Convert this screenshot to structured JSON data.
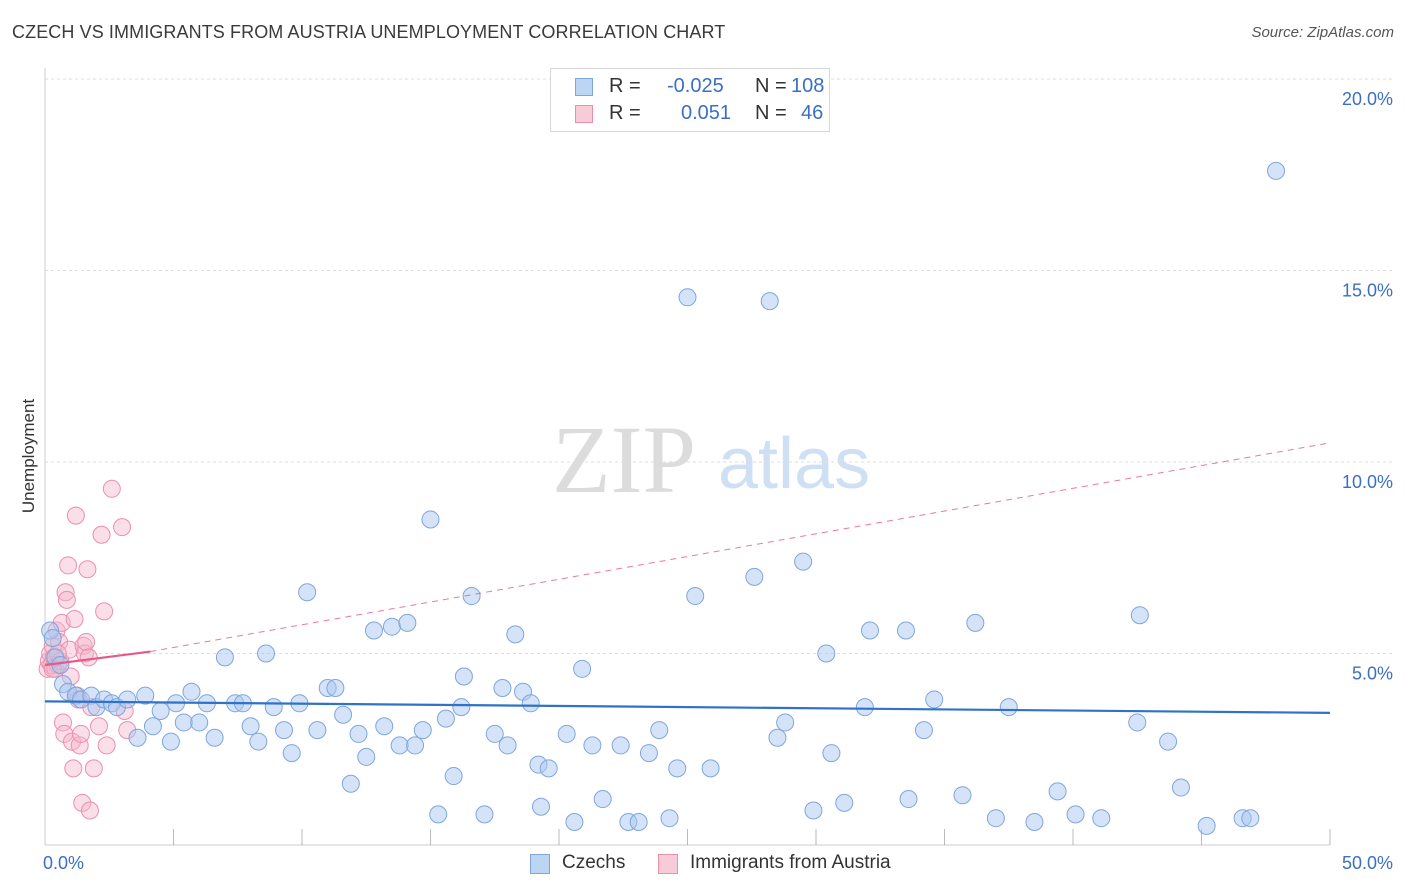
{
  "title": "CZECH VS IMMIGRANTS FROM AUSTRIA UNEMPLOYMENT CORRELATION CHART",
  "source": "Source: ZipAtlas.com",
  "watermark": {
    "zip": "ZIP",
    "atlas": "atlas"
  },
  "legend": {
    "r_label": "R =",
    "n_label": "N =",
    "rows": [
      {
        "r": "-0.025",
        "n": "108"
      },
      {
        "r": "0.051",
        "n": "46"
      }
    ]
  },
  "bottom_legend": [
    "Czechs",
    "Immigrants from Austria"
  ],
  "colors": {
    "blue_fill": "#a9c8f0",
    "blue_stroke": "#7fa6dd",
    "blue_line": "#2f72c8",
    "pink_fill": "#f5b8cb",
    "pink_stroke": "#ec8fae",
    "pink_line": "#e9588a",
    "axis_label": "#3b6fc4",
    "grid": "#dddddd"
  },
  "chart_data": {
    "type": "scatter",
    "title": "CZECH VS IMMIGRANTS FROM AUSTRIA UNEMPLOYMENT CORRELATION CHART",
    "xlabel": "",
    "ylabel": "Unemployment",
    "xlim": [
      0,
      50
    ],
    "ylim": [
      0,
      20
    ],
    "x_tick_labels": [
      "0.0%",
      "50.0%"
    ],
    "y_ticks": [
      5,
      10,
      15,
      20
    ],
    "y_tick_labels": [
      "5.0%",
      "10.0%",
      "15.0%",
      "20.0%"
    ],
    "grid": true,
    "legend_position": "top-center",
    "series": [
      {
        "name": "Czechs",
        "r": -0.025,
        "n": 108,
        "trend": {
          "x0": 0,
          "y0": 3.75,
          "x1": 50,
          "y1": 3.45
        },
        "points": [
          [
            0.2,
            5.6
          ],
          [
            0.3,
            5.4
          ],
          [
            0.4,
            4.9
          ],
          [
            0.6,
            4.7
          ],
          [
            0.7,
            4.2
          ],
          [
            0.9,
            4.0
          ],
          [
            1.2,
            3.9
          ],
          [
            1.4,
            3.8
          ],
          [
            1.8,
            3.9
          ],
          [
            2.0,
            3.6
          ],
          [
            2.3,
            3.8
          ],
          [
            2.6,
            3.7
          ],
          [
            2.8,
            3.6
          ],
          [
            3.2,
            3.8
          ],
          [
            3.6,
            2.8
          ],
          [
            3.9,
            3.9
          ],
          [
            4.2,
            3.1
          ],
          [
            4.5,
            3.5
          ],
          [
            4.9,
            2.7
          ],
          [
            5.1,
            3.7
          ],
          [
            5.4,
            3.2
          ],
          [
            5.7,
            4.0
          ],
          [
            6.0,
            3.2
          ],
          [
            6.3,
            3.7
          ],
          [
            6.6,
            2.8
          ],
          [
            7.0,
            4.9
          ],
          [
            7.4,
            3.7
          ],
          [
            7.7,
            3.7
          ],
          [
            8.0,
            3.1
          ],
          [
            8.3,
            2.7
          ],
          [
            8.6,
            5.0
          ],
          [
            8.9,
            3.6
          ],
          [
            9.3,
            3.0
          ],
          [
            9.6,
            2.4
          ],
          [
            9.9,
            3.7
          ],
          [
            10.2,
            6.6
          ],
          [
            10.6,
            3.0
          ],
          [
            11.0,
            4.1
          ],
          [
            11.3,
            4.1
          ],
          [
            11.6,
            3.4
          ],
          [
            11.9,
            1.6
          ],
          [
            12.2,
            2.9
          ],
          [
            12.5,
            2.3
          ],
          [
            12.8,
            5.6
          ],
          [
            13.2,
            3.1
          ],
          [
            13.5,
            5.7
          ],
          [
            13.8,
            2.6
          ],
          [
            14.1,
            5.8
          ],
          [
            14.4,
            2.6
          ],
          [
            14.7,
            3.0
          ],
          [
            15.0,
            8.5
          ],
          [
            15.3,
            0.8
          ],
          [
            15.6,
            3.3
          ],
          [
            15.9,
            1.8
          ],
          [
            16.2,
            3.6
          ],
          [
            16.3,
            4.4
          ],
          [
            16.6,
            6.5
          ],
          [
            17.1,
            0.8
          ],
          [
            17.5,
            2.9
          ],
          [
            17.8,
            4.1
          ],
          [
            18.0,
            2.6
          ],
          [
            18.3,
            5.5
          ],
          [
            18.6,
            4.0
          ],
          [
            18.9,
            3.7
          ],
          [
            19.2,
            2.1
          ],
          [
            19.3,
            1.0
          ],
          [
            19.6,
            2.0
          ],
          [
            20.3,
            2.9
          ],
          [
            20.6,
            0.6
          ],
          [
            20.9,
            4.6
          ],
          [
            21.3,
            2.6
          ],
          [
            21.7,
            1.2
          ],
          [
            22.4,
            2.6
          ],
          [
            22.7,
            0.6
          ],
          [
            23.1,
            0.6
          ],
          [
            23.5,
            2.4
          ],
          [
            23.9,
            3.0
          ],
          [
            24.3,
            0.7
          ],
          [
            24.6,
            2.0
          ],
          [
            25.0,
            14.3
          ],
          [
            25.3,
            6.5
          ],
          [
            25.9,
            2.0
          ],
          [
            27.6,
            7.0
          ],
          [
            28.2,
            14.2
          ],
          [
            28.5,
            2.8
          ],
          [
            28.8,
            3.2
          ],
          [
            29.5,
            7.4
          ],
          [
            29.9,
            0.9
          ],
          [
            30.4,
            5.0
          ],
          [
            30.6,
            2.4
          ],
          [
            31.1,
            1.1
          ],
          [
            31.9,
            3.6
          ],
          [
            32.1,
            5.6
          ],
          [
            33.5,
            5.6
          ],
          [
            33.6,
            1.2
          ],
          [
            34.2,
            3.0
          ],
          [
            34.6,
            3.8
          ],
          [
            35.7,
            1.3
          ],
          [
            36.2,
            5.8
          ],
          [
            37.0,
            0.7
          ],
          [
            37.5,
            3.6
          ],
          [
            38.5,
            0.6
          ],
          [
            39.4,
            1.4
          ],
          [
            40.1,
            0.8
          ],
          [
            41.1,
            0.7
          ],
          [
            42.5,
            3.2
          ],
          [
            42.6,
            6.0
          ],
          [
            43.7,
            2.7
          ],
          [
            44.2,
            1.5
          ],
          [
            45.2,
            0.5
          ],
          [
            46.6,
            0.7
          ],
          [
            46.9,
            0.7
          ],
          [
            47.9,
            17.6
          ]
        ]
      },
      {
        "name": "Immigrants from Austria",
        "r": 0.051,
        "n": 46,
        "trend": {
          "x0": 0,
          "y0": 4.7,
          "x1": 4.1,
          "y1": 5.05,
          "dashed_to": {
            "x": 50,
            "y": 10.5
          }
        },
        "points": [
          [
            0.1,
            4.6
          ],
          [
            0.15,
            4.8
          ],
          [
            0.2,
            5.0
          ],
          [
            0.25,
            4.7
          ],
          [
            0.3,
            5.2
          ],
          [
            0.35,
            4.9
          ],
          [
            0.4,
            4.6
          ],
          [
            0.45,
            5.6
          ],
          [
            0.5,
            4.7
          ],
          [
            0.55,
            5.3
          ],
          [
            0.6,
            4.8
          ],
          [
            0.65,
            5.8
          ],
          [
            0.7,
            3.2
          ],
          [
            0.75,
            2.9
          ],
          [
            0.8,
            6.6
          ],
          [
            0.85,
            6.4
          ],
          [
            0.9,
            7.3
          ],
          [
            0.95,
            5.1
          ],
          [
            1.0,
            4.4
          ],
          [
            1.05,
            2.7
          ],
          [
            1.1,
            2.0
          ],
          [
            1.15,
            5.9
          ],
          [
            1.2,
            8.6
          ],
          [
            1.25,
            3.9
          ],
          [
            1.3,
            3.8
          ],
          [
            1.35,
            2.6
          ],
          [
            1.4,
            2.9
          ],
          [
            1.45,
            1.1
          ],
          [
            1.5,
            5.2
          ],
          [
            1.55,
            5.0
          ],
          [
            1.6,
            5.3
          ],
          [
            1.65,
            7.2
          ],
          [
            1.7,
            4.9
          ],
          [
            1.75,
            0.9
          ],
          [
            1.8,
            3.6
          ],
          [
            1.9,
            2.0
          ],
          [
            2.1,
            3.1
          ],
          [
            2.2,
            8.1
          ],
          [
            2.3,
            6.1
          ],
          [
            2.4,
            2.6
          ],
          [
            2.6,
            9.3
          ],
          [
            3.0,
            8.3
          ],
          [
            3.1,
            3.5
          ],
          [
            3.2,
            3.0
          ],
          [
            0.3,
            4.6
          ],
          [
            0.5,
            5.0
          ]
        ]
      }
    ]
  }
}
